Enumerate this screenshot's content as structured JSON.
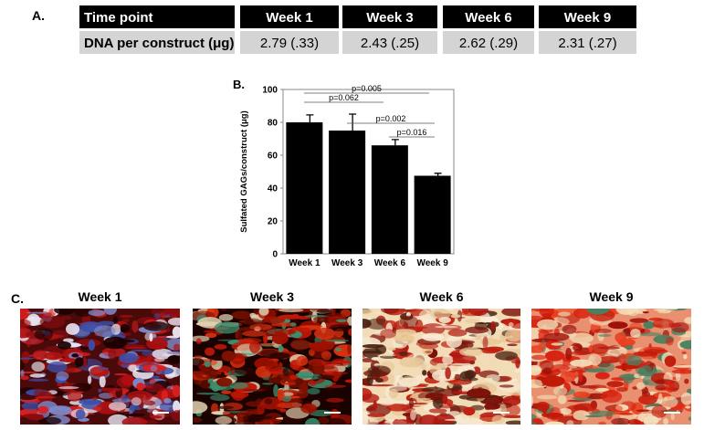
{
  "panel_a": {
    "label": "A.",
    "table": {
      "header": [
        "Time point",
        "Week 1",
        "Week 3",
        "Week 6",
        "Week 9"
      ],
      "rows": [
        [
          "DNA per construct (μg)",
          "2.79 (.33)",
          "2.43 (.25)",
          "2.62 (.29)",
          "2.31 (.27)"
        ]
      ]
    }
  },
  "chart_data": {
    "type": "bar",
    "label": "B.",
    "y_label": "Sulfated GAGs/construct (μg)",
    "categories": [
      "Week 1",
      "Week 3",
      "Week 6",
      "Week 9"
    ],
    "values": [
      80,
      75,
      66,
      47.5
    ],
    "errors": [
      4.5,
      10,
      3.5,
      1.5
    ],
    "color": "#000000",
    "ylim": [
      0,
      100
    ],
    "yticks": [
      0,
      20,
      40,
      60,
      80,
      100
    ],
    "annotations": [
      "p=0.005",
      "p=0.062",
      "p=0.002",
      "p=0.016"
    ]
  },
  "panel_c": {
    "label": "C.",
    "images": [
      "Week 1",
      "Week 3",
      "Week 6",
      "Week 9"
    ]
  }
}
